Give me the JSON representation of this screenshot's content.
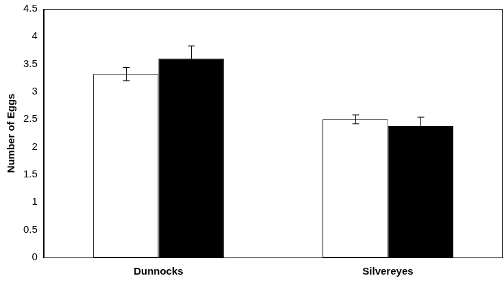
{
  "chart_data": {
    "type": "bar",
    "y_label": "Number of Eggs",
    "categories": [
      "Dunnocks",
      "Silvereyes"
    ],
    "series": [
      {
        "color": "#ffffff",
        "values": [
          3.32,
          2.5
        ],
        "errors": [
          0.12,
          0.08
        ]
      },
      {
        "color": "#000000",
        "values": [
          3.6,
          2.38
        ],
        "errors": [
          0.23,
          0.16
        ]
      }
    ],
    "ylim": [
      0,
      4.5
    ],
    "yticks": [
      0,
      0.5,
      1,
      1.5,
      2,
      2.5,
      3,
      3.5,
      4,
      4.5
    ],
    "grid": false,
    "legend": false
  }
}
